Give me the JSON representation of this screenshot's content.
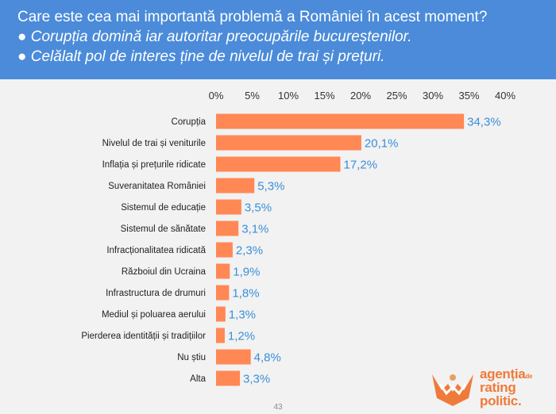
{
  "header": {
    "question": "Care este cea mai importantă problemă a României în acest moment?",
    "bullet1": "● Corupția domină iar autoritar preocupările bucureștenilor.",
    "bullet2": "● Celălalt pol de interes ține de nivelul de trai și prețuri."
  },
  "page_number": "43",
  "logo": {
    "line1": "agenția",
    "de": "de",
    "line2": "rating",
    "line3": "politic."
  },
  "colors": {
    "header_bg": "#4b8bd9",
    "bar": "#ff8855",
    "value_label": "#3a8fd8",
    "logo": "#f07a3a"
  },
  "chart_data": {
    "type": "bar",
    "orientation": "horizontal",
    "xlim": [
      0,
      40
    ],
    "ticks": [
      "0%",
      "5%",
      "10%",
      "15%",
      "20%",
      "25%",
      "30%",
      "35%",
      "40%"
    ],
    "tick_values": [
      0,
      5,
      10,
      15,
      20,
      25,
      30,
      35,
      40
    ],
    "categories": [
      "Corupția",
      "Nivelul de trai și veniturile",
      "Inflația și prețurile ridicate",
      "Suveranitatea României",
      "Sistemul de educație",
      "Sistemul de sănătate",
      "Infracționalitatea ridicată",
      "Războiul din Ucraina",
      "Infrastructura de drumuri",
      "Mediul și poluarea aerului",
      "Pierderea identității și tradițiilor",
      "Nu știu",
      "Alta"
    ],
    "values": [
      34.3,
      20.1,
      17.2,
      5.3,
      3.5,
      3.1,
      2.3,
      1.9,
      1.8,
      1.3,
      1.2,
      4.8,
      3.3
    ],
    "value_labels": [
      "34,3%",
      "20,1%",
      "17,2%",
      "5,3%",
      "3,5%",
      "3,1%",
      "2,3%",
      "1,9%",
      "1,8%",
      "1,3%",
      "1,2%",
      "4,8%",
      "3,3%"
    ],
    "grid": false
  }
}
